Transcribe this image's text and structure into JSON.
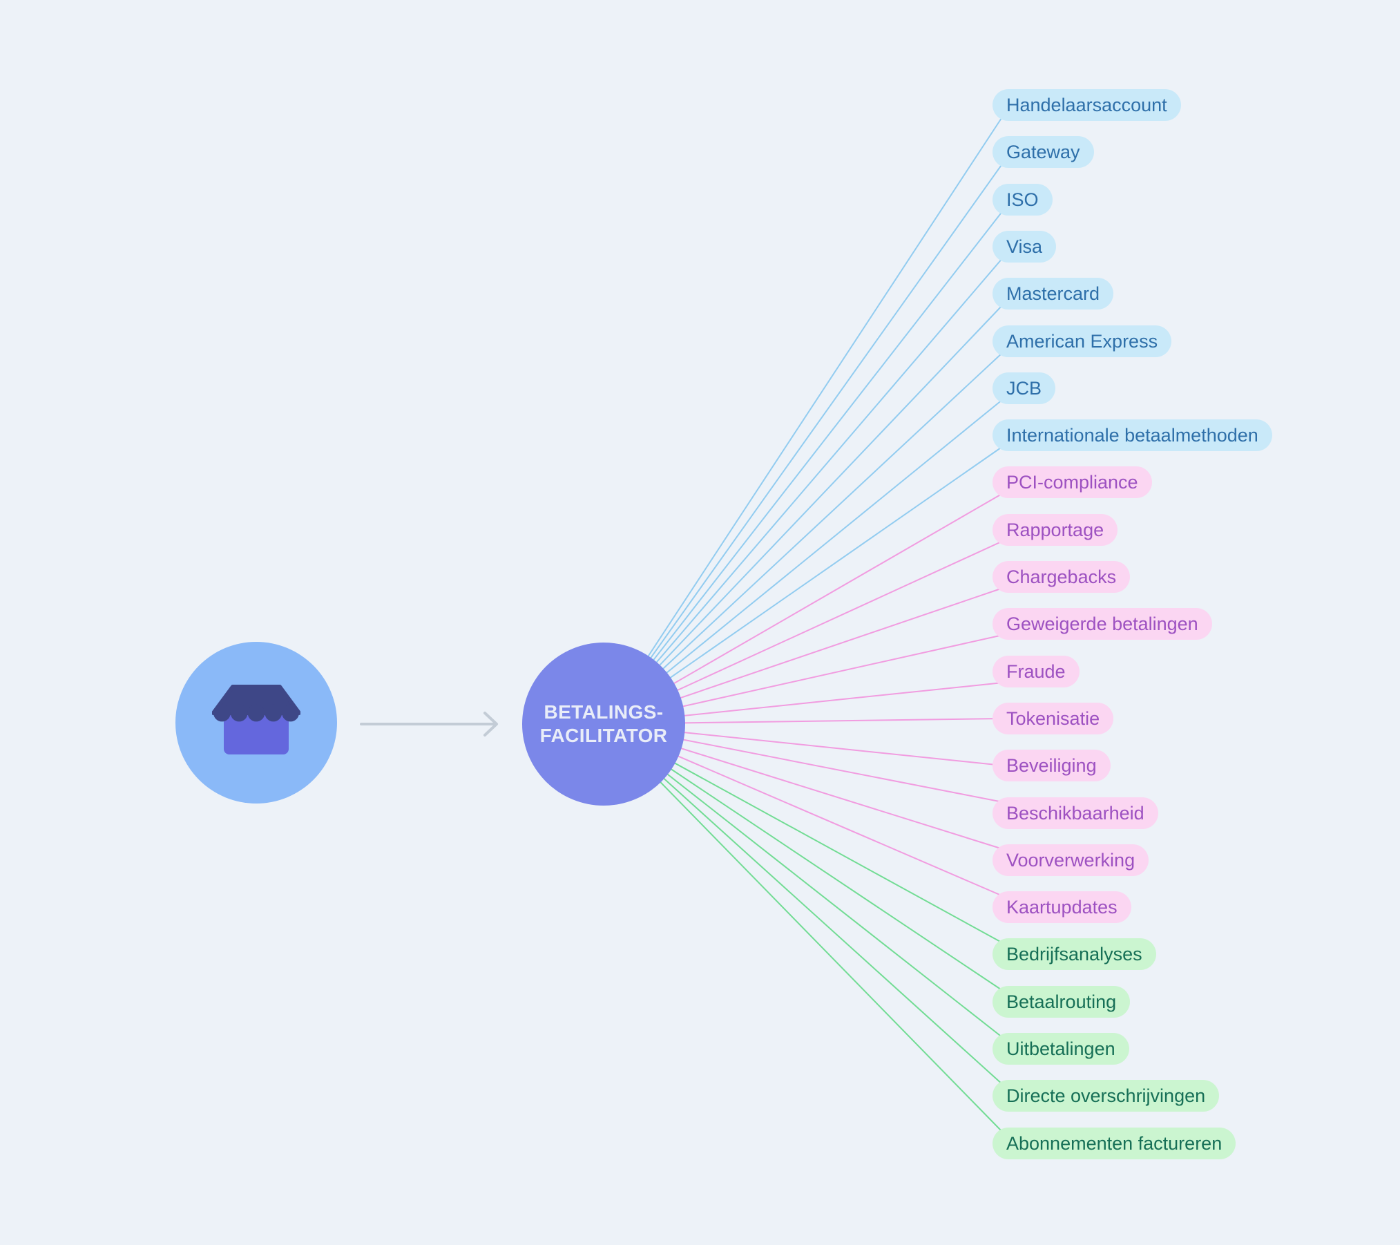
{
  "background_color": "#edf2f8",
  "merchant": {
    "icon": "storefront-icon",
    "circle_color": "#8ab9f8",
    "awning_color": "#3e4787",
    "building_color": "#6467dd"
  },
  "arrow": {
    "color": "#c3ccd6"
  },
  "center": {
    "title_line1": "BETALINGS-",
    "title_line2": "FACILITATOR",
    "circle_color": "#7b87e9",
    "text_color": "#e9edf8"
  },
  "categories": {
    "acquiring": {
      "pill_bg": "#c9e9f9",
      "pill_text": "#2e6fa9",
      "line": "#92ccf0"
    },
    "operations": {
      "pill_bg": "#fbd6f2",
      "pill_text": "#9d51c1",
      "line": "#f19ce0"
    },
    "payouts": {
      "pill_bg": "#cbf5d0",
      "pill_text": "#166f56",
      "line": "#72dc94"
    }
  },
  "nodes": [
    {
      "label": "Handelaarsaccount",
      "category": "acquiring"
    },
    {
      "label": "Gateway",
      "category": "acquiring"
    },
    {
      "label": "ISO",
      "category": "acquiring"
    },
    {
      "label": "Visa",
      "category": "acquiring"
    },
    {
      "label": "Mastercard",
      "category": "acquiring"
    },
    {
      "label": "American Express",
      "category": "acquiring"
    },
    {
      "label": "JCB",
      "category": "acquiring"
    },
    {
      "label": "Internationale betaalmethoden",
      "category": "acquiring"
    },
    {
      "label": "PCI-compliance",
      "category": "operations"
    },
    {
      "label": "Rapportage",
      "category": "operations"
    },
    {
      "label": "Chargebacks",
      "category": "operations"
    },
    {
      "label": "Geweigerde betalingen",
      "category": "operations"
    },
    {
      "label": "Fraude",
      "category": "operations"
    },
    {
      "label": "Tokenisatie",
      "category": "operations"
    },
    {
      "label": "Beveiliging",
      "category": "operations"
    },
    {
      "label": "Beschikbaarheid",
      "category": "operations"
    },
    {
      "label": "Voorverwerking",
      "category": "operations"
    },
    {
      "label": "Kaartupdates",
      "category": "operations"
    },
    {
      "label": "Bedrijfsanalyses",
      "category": "payouts"
    },
    {
      "label": "Betaalrouting",
      "category": "payouts"
    },
    {
      "label": "Uitbetalingen",
      "category": "payouts"
    },
    {
      "label": "Directe overschrijvingen",
      "category": "payouts"
    },
    {
      "label": "Abonnementen factureren",
      "category": "payouts"
    }
  ]
}
